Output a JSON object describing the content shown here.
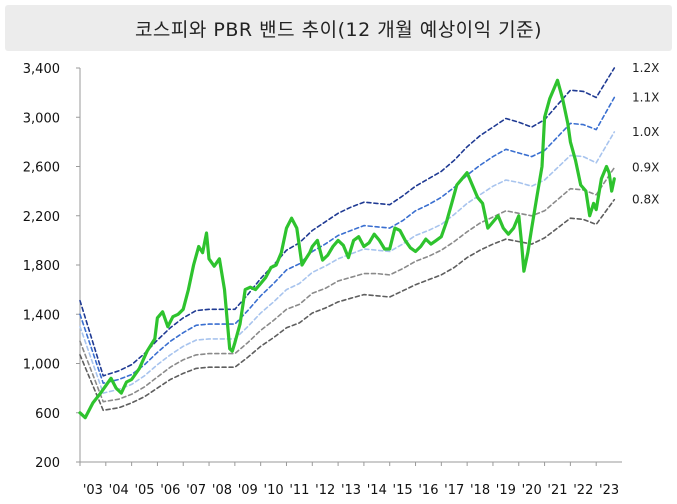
{
  "chart_data": {
    "type": "line",
    "title": "코스피와 PBR 밴드 추이(12 개월 예상이익 기준)",
    "ylim": [
      200,
      3400
    ],
    "yticks": [
      "3,400",
      "3,000",
      "2,600",
      "2,200",
      "1,800",
      "1,400",
      "1,000",
      "600",
      "200"
    ],
    "ytick_values": [
      3400,
      3000,
      2600,
      2200,
      1800,
      1400,
      1000,
      600,
      200
    ],
    "xlim": [
      2003,
      2024
    ],
    "xticks": [
      "'03",
      "'04",
      "'05",
      "'06",
      "'07",
      "'08",
      "'09",
      "'10",
      "'11",
      "'12",
      "'13",
      "'14",
      "'15",
      "'16",
      "'17",
      "'18",
      "'19",
      "'20",
      "'21",
      "'22",
      "'23"
    ],
    "grid": false,
    "legend": "right-end labels",
    "series": [
      {
        "name": "1.2X",
        "color": "#1f3a93",
        "style": "dashed",
        "x": [
          2003.0,
          2003.9,
          2004.5,
          2005.0,
          2005.5,
          2006.0,
          2006.5,
          2007.0,
          2007.5,
          2008.0,
          2008.5,
          2009.0,
          2009.5,
          2010.0,
          2010.5,
          2011.0,
          2011.5,
          2012.0,
          2012.5,
          2013.0,
          2013.5,
          2014.0,
          2014.5,
          2015.0,
          2015.5,
          2016.0,
          2016.5,
          2017.0,
          2017.5,
          2018.0,
          2018.5,
          2019.0,
          2019.5,
          2020.0,
          2020.5,
          2021.0,
          2021.5,
          2022.0,
          2022.5,
          2023.0,
          2023.7
        ],
        "y": [
          1510,
          900,
          940,
          990,
          1080,
          1190,
          1290,
          1370,
          1430,
          1440,
          1440,
          1440,
          1560,
          1690,
          1800,
          1920,
          1980,
          2080,
          2150,
          2220,
          2270,
          2310,
          2300,
          2290,
          2360,
          2440,
          2500,
          2560,
          2650,
          2760,
          2850,
          2920,
          2990,
          2960,
          2920,
          2980,
          3100,
          3220,
          3210,
          3160,
          3400
        ]
      },
      {
        "name": "1.1X",
        "color": "#3a6fd0",
        "style": "dashed",
        "x": [
          2003.0,
          2003.9,
          2004.5,
          2005.0,
          2005.5,
          2006.0,
          2006.5,
          2007.0,
          2007.5,
          2008.0,
          2008.5,
          2009.0,
          2009.5,
          2010.0,
          2010.5,
          2011.0,
          2011.5,
          2012.0,
          2012.5,
          2013.0,
          2013.5,
          2014.0,
          2014.5,
          2015.0,
          2015.5,
          2016.0,
          2016.5,
          2017.0,
          2017.5,
          2018.0,
          2018.5,
          2019.0,
          2019.5,
          2020.0,
          2020.5,
          2021.0,
          2021.5,
          2022.0,
          2022.5,
          2023.0,
          2023.7
        ],
        "y": [
          1400,
          840,
          870,
          910,
          990,
          1090,
          1180,
          1250,
          1310,
          1320,
          1320,
          1320,
          1430,
          1550,
          1650,
          1760,
          1810,
          1910,
          1970,
          2040,
          2080,
          2120,
          2110,
          2100,
          2160,
          2240,
          2290,
          2350,
          2430,
          2530,
          2610,
          2680,
          2740,
          2710,
          2680,
          2730,
          2840,
          2950,
          2940,
          2900,
          3160
        ]
      },
      {
        "name": "1.0X",
        "color": "#a8c4ee",
        "style": "dashed",
        "x": [
          2003.0,
          2003.9,
          2004.5,
          2005.0,
          2005.5,
          2006.0,
          2006.5,
          2007.0,
          2007.5,
          2008.0,
          2008.5,
          2009.0,
          2009.5,
          2010.0,
          2010.5,
          2011.0,
          2011.5,
          2012.0,
          2012.5,
          2013.0,
          2013.5,
          2014.0,
          2014.5,
          2015.0,
          2015.5,
          2016.0,
          2016.5,
          2017.0,
          2017.5,
          2018.0,
          2018.5,
          2019.0,
          2019.5,
          2020.0,
          2020.5,
          2021.0,
          2021.5,
          2022.0,
          2022.5,
          2023.0,
          2023.7
        ],
        "y": [
          1300,
          760,
          790,
          830,
          900,
          990,
          1070,
          1140,
          1190,
          1200,
          1200,
          1200,
          1300,
          1410,
          1500,
          1600,
          1650,
          1740,
          1790,
          1850,
          1890,
          1930,
          1920,
          1910,
          1970,
          2040,
          2080,
          2130,
          2210,
          2300,
          2370,
          2440,
          2490,
          2470,
          2440,
          2490,
          2590,
          2690,
          2680,
          2630,
          2880
        ]
      },
      {
        "name": "0.9X",
        "color": "#8a8a8a",
        "style": "dashed",
        "x": [
          2003.0,
          2003.9,
          2004.5,
          2005.0,
          2005.5,
          2006.0,
          2006.5,
          2007.0,
          2007.5,
          2008.0,
          2008.5,
          2009.0,
          2009.5,
          2010.0,
          2010.5,
          2011.0,
          2011.5,
          2012.0,
          2012.5,
          2013.0,
          2013.5,
          2014.0,
          2014.5,
          2015.0,
          2015.5,
          2016.0,
          2016.5,
          2017.0,
          2017.5,
          2018.0,
          2018.5,
          2019.0,
          2019.5,
          2020.0,
          2020.5,
          2021.0,
          2021.5,
          2022.0,
          2022.5,
          2023.0,
          2023.7
        ],
        "y": [
          1180,
          690,
          710,
          750,
          810,
          890,
          970,
          1030,
          1070,
          1080,
          1080,
          1080,
          1170,
          1270,
          1350,
          1440,
          1480,
          1570,
          1610,
          1670,
          1700,
          1730,
          1730,
          1720,
          1770,
          1830,
          1870,
          1920,
          1990,
          2070,
          2140,
          2190,
          2240,
          2220,
          2200,
          2240,
          2330,
          2420,
          2410,
          2370,
          2590
        ]
      },
      {
        "name": "0.8X",
        "color": "#5e5e5e",
        "style": "dashed",
        "x": [
          2003.0,
          2003.9,
          2004.5,
          2005.0,
          2005.5,
          2006.0,
          2006.5,
          2007.0,
          2007.5,
          2008.0,
          2008.5,
          2009.0,
          2009.5,
          2010.0,
          2010.5,
          2011.0,
          2011.5,
          2012.0,
          2012.5,
          2013.0,
          2013.5,
          2014.0,
          2014.5,
          2015.0,
          2015.5,
          2016.0,
          2016.5,
          2017.0,
          2017.5,
          2018.0,
          2018.5,
          2019.0,
          2019.5,
          2020.0,
          2020.5,
          2021.0,
          2021.5,
          2022.0,
          2022.5,
          2023.0,
          2023.7
        ],
        "y": [
          1070,
          620,
          640,
          680,
          730,
          800,
          870,
          920,
          960,
          970,
          970,
          970,
          1050,
          1140,
          1210,
          1290,
          1330,
          1410,
          1450,
          1500,
          1530,
          1560,
          1550,
          1540,
          1590,
          1640,
          1680,
          1720,
          1780,
          1860,
          1920,
          1970,
          2010,
          1990,
          1970,
          2020,
          2100,
          2180,
          2170,
          2130,
          2330
        ]
      },
      {
        "name": "KOSPI",
        "color": "#2ec32e",
        "style": "solid",
        "x": [
          2003.0,
          2003.2,
          2003.5,
          2003.8,
          2004.0,
          2004.2,
          2004.4,
          2004.6,
          2004.8,
          2005.0,
          2005.3,
          2005.6,
          2005.9,
          2006.0,
          2006.2,
          2006.4,
          2006.6,
          2006.8,
          2007.0,
          2007.2,
          2007.4,
          2007.6,
          2007.75,
          2007.9,
          2008.0,
          2008.2,
          2008.4,
          2008.6,
          2008.8,
          2008.9,
          2009.0,
          2009.2,
          2009.4,
          2009.6,
          2009.8,
          2010.0,
          2010.2,
          2010.4,
          2010.6,
          2010.8,
          2011.0,
          2011.2,
          2011.4,
          2011.6,
          2011.75,
          2011.9,
          2012.0,
          2012.2,
          2012.4,
          2012.6,
          2012.8,
          2013.0,
          2013.2,
          2013.4,
          2013.6,
          2013.8,
          2014.0,
          2014.2,
          2014.4,
          2014.6,
          2014.8,
          2015.0,
          2015.2,
          2015.4,
          2015.6,
          2015.8,
          2016.0,
          2016.2,
          2016.4,
          2016.6,
          2016.8,
          2017.0,
          2017.2,
          2017.4,
          2017.6,
          2017.8,
          2018.0,
          2018.2,
          2018.4,
          2018.6,
          2018.8,
          2019.0,
          2019.2,
          2019.4,
          2019.6,
          2019.8,
          2020.0,
          2020.1,
          2020.2,
          2020.35,
          2020.5,
          2020.7,
          2020.9,
          2021.0,
          2021.2,
          2021.4,
          2021.5,
          2021.7,
          2021.9,
          2022.0,
          2022.2,
          2022.4,
          2022.6,
          2022.75,
          2022.9,
          2023.0,
          2023.2,
          2023.4,
          2023.5,
          2023.6,
          2023.7
        ],
        "y": [
          600,
          560,
          680,
          760,
          820,
          880,
          800,
          760,
          850,
          870,
          960,
          1100,
          1200,
          1370,
          1420,
          1300,
          1380,
          1400,
          1440,
          1600,
          1800,
          1950,
          1900,
          2060,
          1850,
          1790,
          1850,
          1600,
          1120,
          1100,
          1170,
          1320,
          1600,
          1620,
          1600,
          1650,
          1700,
          1780,
          1800,
          1900,
          2100,
          2180,
          2100,
          1800,
          1850,
          1900,
          1950,
          2000,
          1840,
          1880,
          1950,
          2000,
          1960,
          1860,
          2000,
          2030,
          1950,
          1980,
          2050,
          2000,
          1930,
          1930,
          2100,
          2080,
          2000,
          1940,
          1910,
          1950,
          2010,
          1970,
          2000,
          2030,
          2150,
          2300,
          2450,
          2500,
          2550,
          2450,
          2350,
          2300,
          2100,
          2150,
          2200,
          2100,
          2050,
          2100,
          2200,
          2000,
          1750,
          1900,
          2100,
          2350,
          2600,
          3000,
          3150,
          3250,
          3300,
          3150,
          2950,
          2800,
          2650,
          2450,
          2400,
          2200,
          2300,
          2250,
          2500,
          2600,
          2550,
          2400,
          2500
        ]
      }
    ]
  }
}
